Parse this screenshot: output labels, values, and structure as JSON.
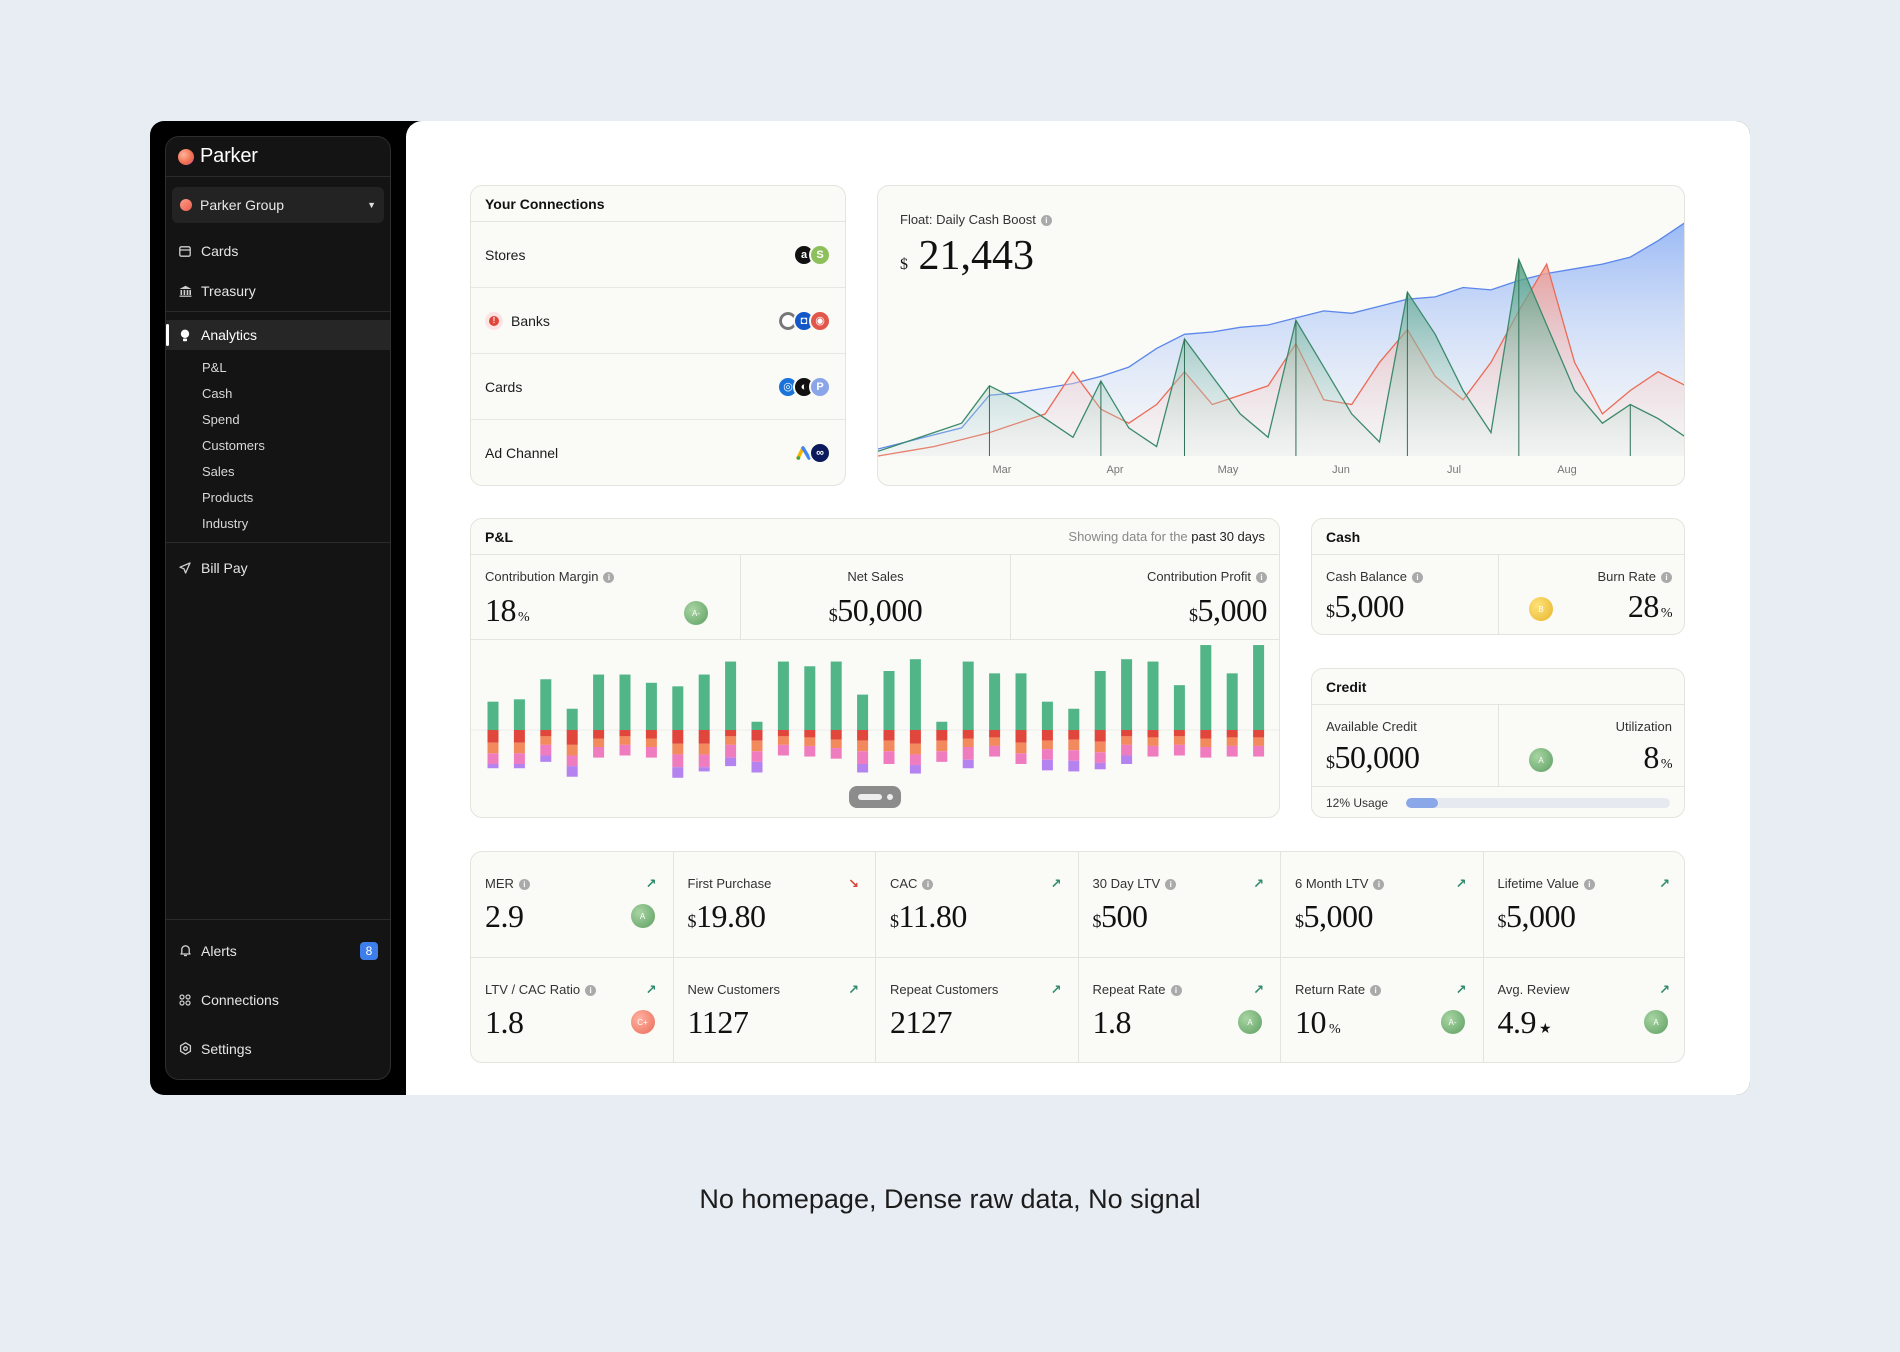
{
  "brand": {
    "name": "Parker"
  },
  "workspace": {
    "label": "Parker Group"
  },
  "sidebar": {
    "items": [
      {
        "label": "Cards",
        "icon": "card-icon"
      },
      {
        "label": "Treasury",
        "icon": "bank-icon"
      },
      {
        "label": "Analytics",
        "icon": "lightbulb-icon"
      },
      {
        "label": "Bill Pay",
        "icon": "send-icon"
      }
    ],
    "analytics_sub": [
      "P&L",
      "Cash",
      "Spend",
      "Customers",
      "Sales",
      "Products",
      "Industry"
    ],
    "bottom": [
      {
        "label": "Alerts",
        "icon": "bell-icon",
        "badge": "8"
      },
      {
        "label": "Connections",
        "icon": "grid-icon"
      },
      {
        "label": "Settings",
        "icon": "gear-icon"
      }
    ]
  },
  "connections": {
    "title": "Your Connections",
    "rows": [
      {
        "label": "Stores"
      },
      {
        "label": "Banks",
        "alert": "!"
      },
      {
        "label": "Cards"
      },
      {
        "label": "Ad Channel"
      }
    ]
  },
  "float": {
    "title": "Float: Daily Cash Boost",
    "currency": "$",
    "value": "21,443",
    "months": [
      "Mar",
      "Apr",
      "May",
      "Jun",
      "Jul",
      "Aug"
    ]
  },
  "pl": {
    "title": "P&L",
    "note_prefix": "Showing data for the",
    "note_range": "past 30 days",
    "contribution_margin": {
      "label": "Contribution Margin",
      "value": "18",
      "unit": "%",
      "grade": "A-"
    },
    "net_sales": {
      "label": "Net Sales",
      "currency": "$",
      "value": "50,000"
    },
    "contribution_profit": {
      "label": "Contribution Profit",
      "currency": "$",
      "value": "5,000"
    }
  },
  "cash": {
    "title": "Cash",
    "balance": {
      "label": "Cash Balance",
      "currency": "$",
      "value": "5,000"
    },
    "burn": {
      "label": "Burn Rate",
      "value": "28",
      "unit": "%",
      "grade": "B"
    }
  },
  "credit": {
    "title": "Credit",
    "available": {
      "label": "Available Credit",
      "currency": "$",
      "value": "50,000"
    },
    "utilization": {
      "label": "Utilization",
      "value": "8",
      "unit": "%",
      "grade": "A"
    },
    "usage_label": "12% Usage",
    "usage_fraction": 0.12
  },
  "kpis": [
    {
      "label": "MER",
      "info": true,
      "trend": "up",
      "value": "2.9",
      "grade": "A",
      "grade_color": "green"
    },
    {
      "label": "First Purchase",
      "info": false,
      "trend": "down",
      "currency": "$",
      "value": "19.80"
    },
    {
      "label": "CAC",
      "info": true,
      "trend": "up",
      "currency": "$",
      "value": "11.80"
    },
    {
      "label": "30 Day LTV",
      "info": true,
      "trend": "up",
      "currency": "$",
      "value": "500"
    },
    {
      "label": "6 Month LTV",
      "info": true,
      "trend": "up",
      "currency": "$",
      "value": "5,000"
    },
    {
      "label": "Lifetime Value",
      "info": true,
      "trend": "up",
      "currency": "$",
      "value": "5,000"
    },
    {
      "label": "LTV / CAC Ratio",
      "info": true,
      "trend": "up",
      "value": "1.8",
      "grade": "C+",
      "grade_color": "coral"
    },
    {
      "label": "New Customers",
      "info": false,
      "trend": "up",
      "value": "1127"
    },
    {
      "label": "Repeat Customers",
      "info": false,
      "trend": "up",
      "value": "2127"
    },
    {
      "label": "Repeat Rate",
      "info": true,
      "trend": "up",
      "value": "1.8",
      "grade": "A",
      "grade_color": "green"
    },
    {
      "label": "Return Rate",
      "info": true,
      "trend": "up",
      "value": "10",
      "unit": "%",
      "grade": "A-",
      "grade_color": "green"
    },
    {
      "label": "Avg. Review",
      "info": false,
      "trend": "up",
      "value": "4.9",
      "unit": "★",
      "grade": "A",
      "grade_color": "green"
    }
  ],
  "caption": "No homepage, Dense raw data, No signal",
  "colors": {
    "green": "#52b587",
    "red": "#e0463b",
    "orange": "#f28a5e",
    "pink": "#f07cc0",
    "purple": "#b583f0",
    "blue": "#9fbdf5"
  },
  "chart_data": [
    {
      "type": "area",
      "title": "Float: Daily Cash Boost",
      "x": [
        0,
        1,
        2,
        3,
        4,
        5,
        6,
        7,
        8,
        9,
        10,
        11,
        12,
        13,
        14,
        15,
        16,
        17,
        18,
        19,
        20,
        21,
        22,
        23,
        24,
        25,
        26,
        27,
        28,
        29
      ],
      "xticks": [
        "Mar",
        "Apr",
        "May",
        "Jun",
        "Jul",
        "Aug"
      ],
      "series": [
        {
          "name": "blue",
          "values": [
            3,
            6,
            9,
            12,
            26,
            27,
            29,
            31,
            34,
            38,
            46,
            52,
            53,
            55,
            56,
            59,
            62,
            61,
            64,
            67,
            68,
            72,
            71,
            75,
            78,
            80,
            82,
            85,
            92,
            100
          ]
        },
        {
          "name": "red",
          "values": [
            0,
            2,
            4,
            7,
            10,
            14,
            18,
            36,
            20,
            14,
            22,
            36,
            22,
            26,
            30,
            48,
            24,
            22,
            40,
            54,
            34,
            24,
            40,
            62,
            82,
            40,
            18,
            28,
            36,
            30
          ]
        },
        {
          "name": "green",
          "values": [
            2,
            6,
            10,
            14,
            30,
            24,
            16,
            8,
            32,
            12,
            4,
            50,
            34,
            18,
            8,
            58,
            38,
            18,
            6,
            70,
            52,
            28,
            10,
            84,
            56,
            28,
            14,
            22,
            16,
            8
          ]
        }
      ],
      "ylim": [
        0,
        100
      ]
    },
    {
      "type": "bar",
      "title": "P&L daily breakdown",
      "categories": [
        "1",
        "2",
        "3",
        "4",
        "5",
        "6",
        "7",
        "8",
        "9",
        "10",
        "11",
        "12",
        "13",
        "14",
        "15",
        "16",
        "17",
        "18",
        "19",
        "20",
        "21",
        "22",
        "23",
        "24",
        "25",
        "26",
        "27",
        "28",
        "29",
        "30"
      ],
      "series": [
        {
          "name": "green",
          "values": [
            24,
            26,
            43,
            18,
            47,
            47,
            40,
            37,
            47,
            58,
            7,
            58,
            54,
            58,
            30,
            50,
            60,
            7,
            58,
            48,
            48,
            24,
            18,
            50,
            60,
            58,
            38,
            72,
            48,
            72
          ]
        },
        {
          "name": "red",
          "values": [
            12,
            12,
            6,
            14,
            8,
            6,
            8,
            13,
            13,
            6,
            10,
            6,
            7,
            9,
            10,
            10,
            13,
            10,
            8,
            7,
            12,
            10,
            9,
            11,
            6,
            7,
            6,
            8,
            7,
            7
          ]
        },
        {
          "name": "orange",
          "values": [
            10,
            10,
            8,
            10,
            8,
            8,
            8,
            10,
            10,
            8,
            10,
            8,
            8,
            8,
            10,
            10,
            10,
            10,
            8,
            8,
            10,
            8,
            10,
            10,
            8,
            8,
            8,
            8,
            8,
            8
          ]
        },
        {
          "name": "pink",
          "values": [
            10,
            10,
            10,
            10,
            10,
            10,
            10,
            12,
            12,
            12,
            10,
            10,
            10,
            10,
            12,
            12,
            10,
            10,
            12,
            10,
            10,
            10,
            10,
            10,
            10,
            10,
            10,
            10,
            10,
            10
          ]
        },
        {
          "name": "purple",
          "values": [
            4,
            4,
            6,
            10,
            0,
            0,
            0,
            10,
            4,
            8,
            10,
            0,
            0,
            0,
            8,
            0,
            8,
            0,
            8,
            0,
            0,
            10,
            10,
            6,
            8,
            0,
            0,
            0,
            0,
            0
          ]
        }
      ]
    }
  ]
}
